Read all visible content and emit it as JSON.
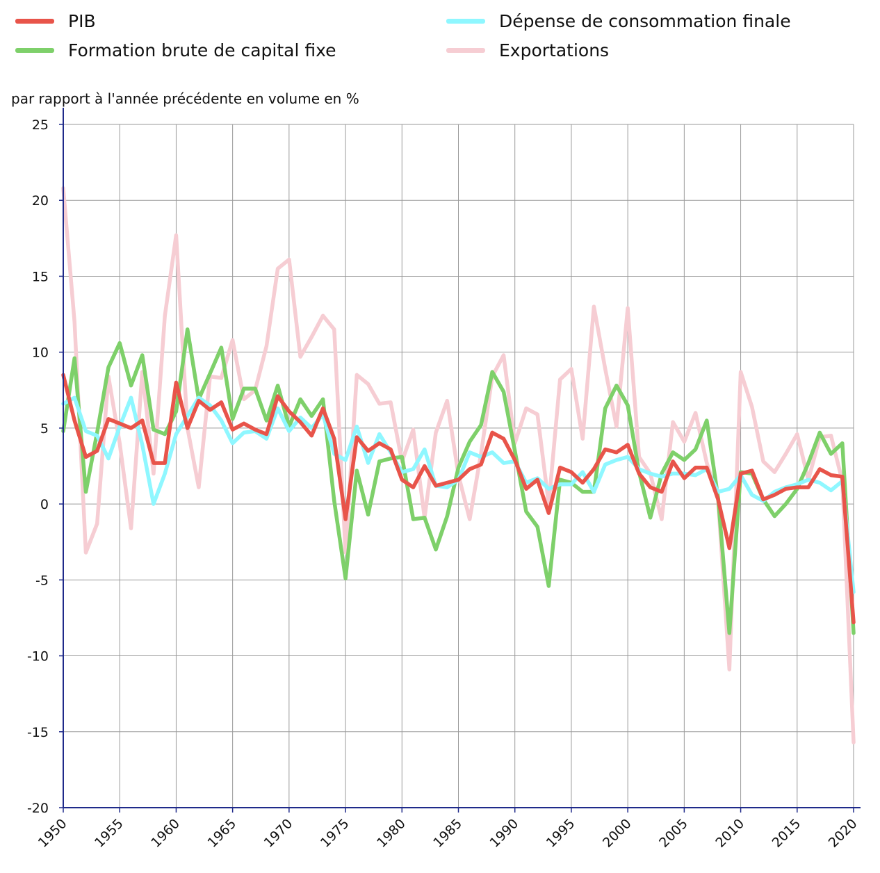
{
  "chart_data": {
    "type": "line",
    "title": "",
    "xlabel": "",
    "ylabel": "par rapport à l'année précédente en volume en %",
    "xlim": [
      1950,
      2020
    ],
    "ylim": [
      -20,
      25
    ],
    "grid": true,
    "legend_position": "top",
    "x_ticks": [
      "1950",
      "1955",
      "1960",
      "1965",
      "1970",
      "1975",
      "1980",
      "1985",
      "1990",
      "1995",
      "2000",
      "2005",
      "2010",
      "2015",
      "2020"
    ],
    "y_ticks": [
      "25",
      "20",
      "15",
      "10",
      "5",
      "0",
      "-5",
      "-10",
      "-15",
      "-20"
    ],
    "x": [
      1950,
      1951,
      1952,
      1953,
      1954,
      1955,
      1956,
      1957,
      1958,
      1959,
      1960,
      1961,
      1962,
      1963,
      1964,
      1965,
      1966,
      1967,
      1968,
      1969,
      1970,
      1971,
      1972,
      1973,
      1974,
      1975,
      1976,
      1977,
      1978,
      1979,
      1980,
      1981,
      1982,
      1983,
      1984,
      1985,
      1986,
      1987,
      1988,
      1989,
      1990,
      1991,
      1992,
      1993,
      1994,
      1995,
      1996,
      1997,
      1998,
      1999,
      2000,
      2001,
      2002,
      2003,
      2004,
      2005,
      2006,
      2007,
      2008,
      2009,
      2010,
      2011,
      2012,
      2013,
      2014,
      2015,
      2016,
      2017,
      2018,
      2019,
      2020
    ],
    "series": [
      {
        "name": "PIB",
        "color": "#e8544a",
        "values": [
          8.5,
          5.5,
          3.1,
          3.5,
          5.6,
          5.3,
          5.0,
          5.5,
          2.7,
          2.7,
          8.0,
          5.0,
          6.8,
          6.2,
          6.7,
          4.9,
          5.3,
          4.9,
          4.6,
          7.1,
          6.1,
          5.4,
          4.5,
          6.3,
          4.3,
          -1.0,
          4.4,
          3.5,
          4.0,
          3.6,
          1.6,
          1.1,
          2.5,
          1.2,
          1.4,
          1.6,
          2.3,
          2.6,
          4.7,
          4.3,
          2.9,
          1.0,
          1.6,
          -0.6,
          2.4,
          2.1,
          1.4,
          2.3,
          3.6,
          3.4,
          3.9,
          2.0,
          1.1,
          0.8,
          2.8,
          1.7,
          2.4,
          2.4,
          0.3,
          -2.9,
          2.0,
          2.2,
          0.3,
          0.6,
          1.0,
          1.1,
          1.1,
          2.3,
          1.9,
          1.8,
          -7.8
        ]
      },
      {
        "name": "Dépense de consommation finale",
        "color": "#8ff7ff",
        "values": [
          6.6,
          7.0,
          4.8,
          4.5,
          3.0,
          5.1,
          7.0,
          3.9,
          0.0,
          2.0,
          4.6,
          5.8,
          7.0,
          6.5,
          5.5,
          4.0,
          4.7,
          4.8,
          4.3,
          6.3,
          4.8,
          5.7,
          5.0,
          5.9,
          3.3,
          2.9,
          5.1,
          2.7,
          4.6,
          3.4,
          2.1,
          2.3,
          3.6,
          1.2,
          1.1,
          1.6,
          3.4,
          3.1,
          3.4,
          2.7,
          2.8,
          1.4,
          1.7,
          1.0,
          1.3,
          1.3,
          2.1,
          0.8,
          2.6,
          2.9,
          3.1,
          2.3,
          2.0,
          1.8,
          2.0,
          2.0,
          1.9,
          2.3,
          0.8,
          1.0,
          1.9,
          0.6,
          0.2,
          0.8,
          1.1,
          1.3,
          1.6,
          1.4,
          0.9,
          1.5,
          -5.8
        ]
      },
      {
        "name": "Formation brute de capital fixe",
        "color": "#7ed06a",
        "values": [
          4.8,
          9.6,
          0.8,
          4.7,
          9.0,
          10.6,
          7.8,
          9.8,
          4.9,
          4.6,
          6.1,
          11.5,
          6.9,
          8.6,
          10.3,
          5.6,
          7.6,
          7.6,
          5.5,
          7.8,
          5.1,
          6.9,
          5.8,
          6.9,
          0.2,
          -4.9,
          2.2,
          -0.7,
          2.8,
          3.0,
          3.1,
          -1.0,
          -0.9,
          -3.0,
          -0.8,
          2.4,
          4.1,
          5.2,
          8.7,
          7.4,
          3.5,
          -0.5,
          -1.5,
          -5.4,
          1.6,
          1.4,
          0.8,
          0.8,
          6.3,
          7.8,
          6.5,
          2.1,
          -0.9,
          2.0,
          3.4,
          2.9,
          3.6,
          5.5,
          0.4,
          -8.5,
          2.1,
          2.0,
          0.3,
          -0.8,
          0.0,
          1.0,
          2.7,
          4.7,
          3.3,
          4.0,
          -8.5
        ]
      },
      {
        "name": "Exportations",
        "color": "#f6cdd3",
        "values": [
          20.8,
          12.0,
          -3.2,
          -1.3,
          8.4,
          4.0,
          -1.6,
          8.7,
          2.0,
          12.4,
          17.7,
          5.0,
          1.1,
          8.4,
          8.3,
          10.8,
          6.9,
          7.5,
          10.4,
          15.5,
          16.1,
          9.7,
          11.0,
          12.4,
          11.5,
          -3.2,
          8.5,
          7.9,
          6.6,
          6.7,
          2.8,
          4.9,
          -0.9,
          4.7,
          6.8,
          1.9,
          -1.0,
          3.3,
          8.4,
          9.8,
          4.0,
          6.3,
          5.9,
          0.0,
          8.2,
          8.9,
          4.3,
          13.0,
          8.9,
          5.1,
          12.9,
          3.1,
          2.0,
          -1.0,
          5.4,
          4.1,
          6.0,
          2.7,
          0.3,
          -10.9,
          8.7,
          6.4,
          2.8,
          2.1,
          3.3,
          4.6,
          1.6,
          4.4,
          4.5,
          1.5,
          -15.7
        ]
      }
    ]
  }
}
